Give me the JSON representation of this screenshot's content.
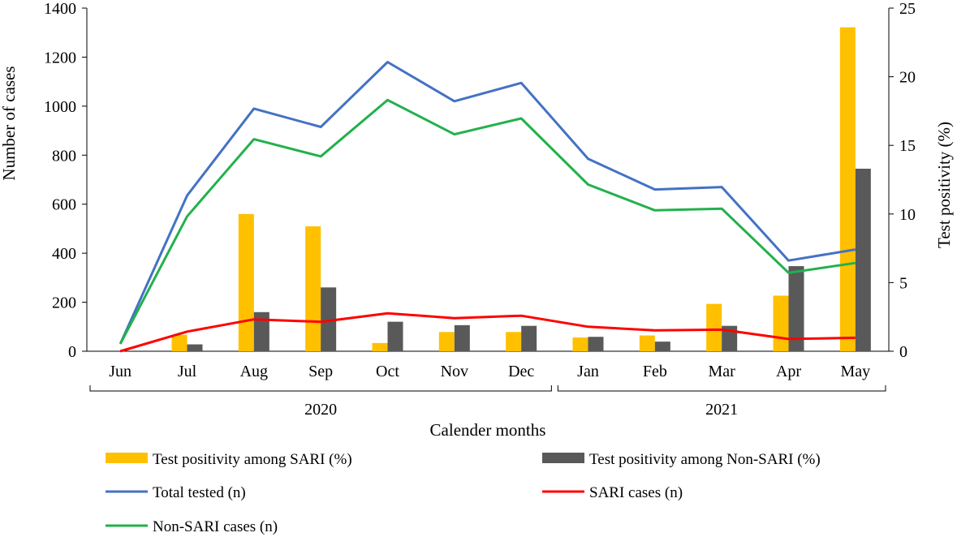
{
  "chart_data": {
    "type": "bar+line",
    "categories": [
      "Jun",
      "Jul",
      "Aug",
      "Sep",
      "Oct",
      "Nov",
      "Dec",
      "Jan",
      "Feb",
      "Mar",
      "Apr",
      "May"
    ],
    "year_groups": [
      {
        "label": "2020",
        "start": 0,
        "end": 6
      },
      {
        "label": "2021",
        "start": 7,
        "end": 11
      }
    ],
    "xlabel": "Calender months",
    "ylabel_left": "Number of cases",
    "ylabel_right": "Test positivity (%)",
    "ylim_left": [
      0,
      1400
    ],
    "yticks_left": [
      0,
      200,
      400,
      600,
      800,
      1000,
      1200,
      1400
    ],
    "ylim_right": [
      0,
      25
    ],
    "yticks_right": [
      0,
      5,
      10,
      15,
      20,
      25
    ],
    "bar_series": [
      {
        "name": "Test positivity among SARI (%)",
        "color": "#FFC000",
        "axis": "right",
        "values": [
          0,
          1.2,
          10.0,
          9.1,
          0.6,
          1.4,
          1.4,
          1.0,
          1.15,
          3.45,
          4.05,
          23.6
        ]
      },
      {
        "name": "Test positivity among Non-SARI (%)",
        "color": "#595959",
        "axis": "right",
        "values": [
          0,
          0.5,
          2.85,
          4.65,
          2.15,
          1.9,
          1.85,
          1.05,
          0.7,
          1.85,
          6.2,
          13.3
        ]
      }
    ],
    "line_series": [
      {
        "name": "Total tested (n)",
        "color": "#4472C4",
        "axis": "left",
        "values": [
          30,
          635,
          990,
          915,
          1180,
          1020,
          1095,
          785,
          660,
          670,
          370,
          415
        ]
      },
      {
        "name": "SARI cases (n)",
        "color": "#FF0000",
        "axis": "left",
        "values": [
          0,
          80,
          130,
          120,
          155,
          135,
          145,
          100,
          85,
          88,
          50,
          55
        ]
      },
      {
        "name": "Non-SARI cases (n)",
        "color": "#22B14C",
        "axis": "left",
        "values": [
          30,
          550,
          865,
          795,
          1025,
          885,
          950,
          680,
          575,
          582,
          320,
          360
        ]
      }
    ]
  }
}
